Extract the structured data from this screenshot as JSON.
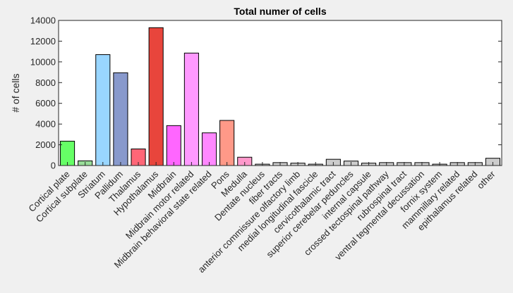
{
  "chart_data": {
    "type": "bar",
    "title": "Total numer of cells",
    "xlabel": "",
    "ylabel": "# of cells",
    "ylim": [
      0,
      14000
    ],
    "yticks": [
      0,
      2000,
      4000,
      6000,
      8000,
      10000,
      12000,
      14000
    ],
    "grid": false,
    "categories": [
      "Cortical plate",
      "Cortical subplate",
      "Striatum",
      "Pallidum",
      "Thalamus",
      "Hypothalamus",
      "Midbrain",
      "Midbrain motor related",
      "Midbrain behavioral state related",
      "Pons",
      "Medulla",
      "Dentate nucleus",
      "fiber tracts",
      "anterior commissure olfactory limb",
      "medial longitudinal fascicle",
      "cervicothalamic tract",
      "superior cerebelar peduncles",
      "internal capsule",
      "crossed tectospinal pathway",
      "rubrospinal tract",
      "ventral tegmental decussation",
      "fornix system",
      "mammillary related",
      "epithalamus related",
      "other"
    ],
    "values": [
      2350,
      450,
      10700,
      8950,
      1600,
      13300,
      3850,
      10850,
      3150,
      4350,
      800,
      130,
      280,
      230,
      130,
      600,
      430,
      230,
      280,
      280,
      280,
      130,
      280,
      280,
      700
    ],
    "colors": [
      "#66ff66",
      "#99dd99",
      "#99d6ff",
      "#8899cc",
      "#ff6677",
      "#e8453c",
      "#ff66ff",
      "#ff99ff",
      "#ff88ff",
      "#ff9988",
      "#ff99cc",
      "#cccccc",
      "#cccccc",
      "#cccccc",
      "#cccccc",
      "#cccccc",
      "#cccccc",
      "#cccccc",
      "#cccccc",
      "#cccccc",
      "#cccccc",
      "#cccccc",
      "#cccccc",
      "#cccccc",
      "#cccccc"
    ]
  }
}
